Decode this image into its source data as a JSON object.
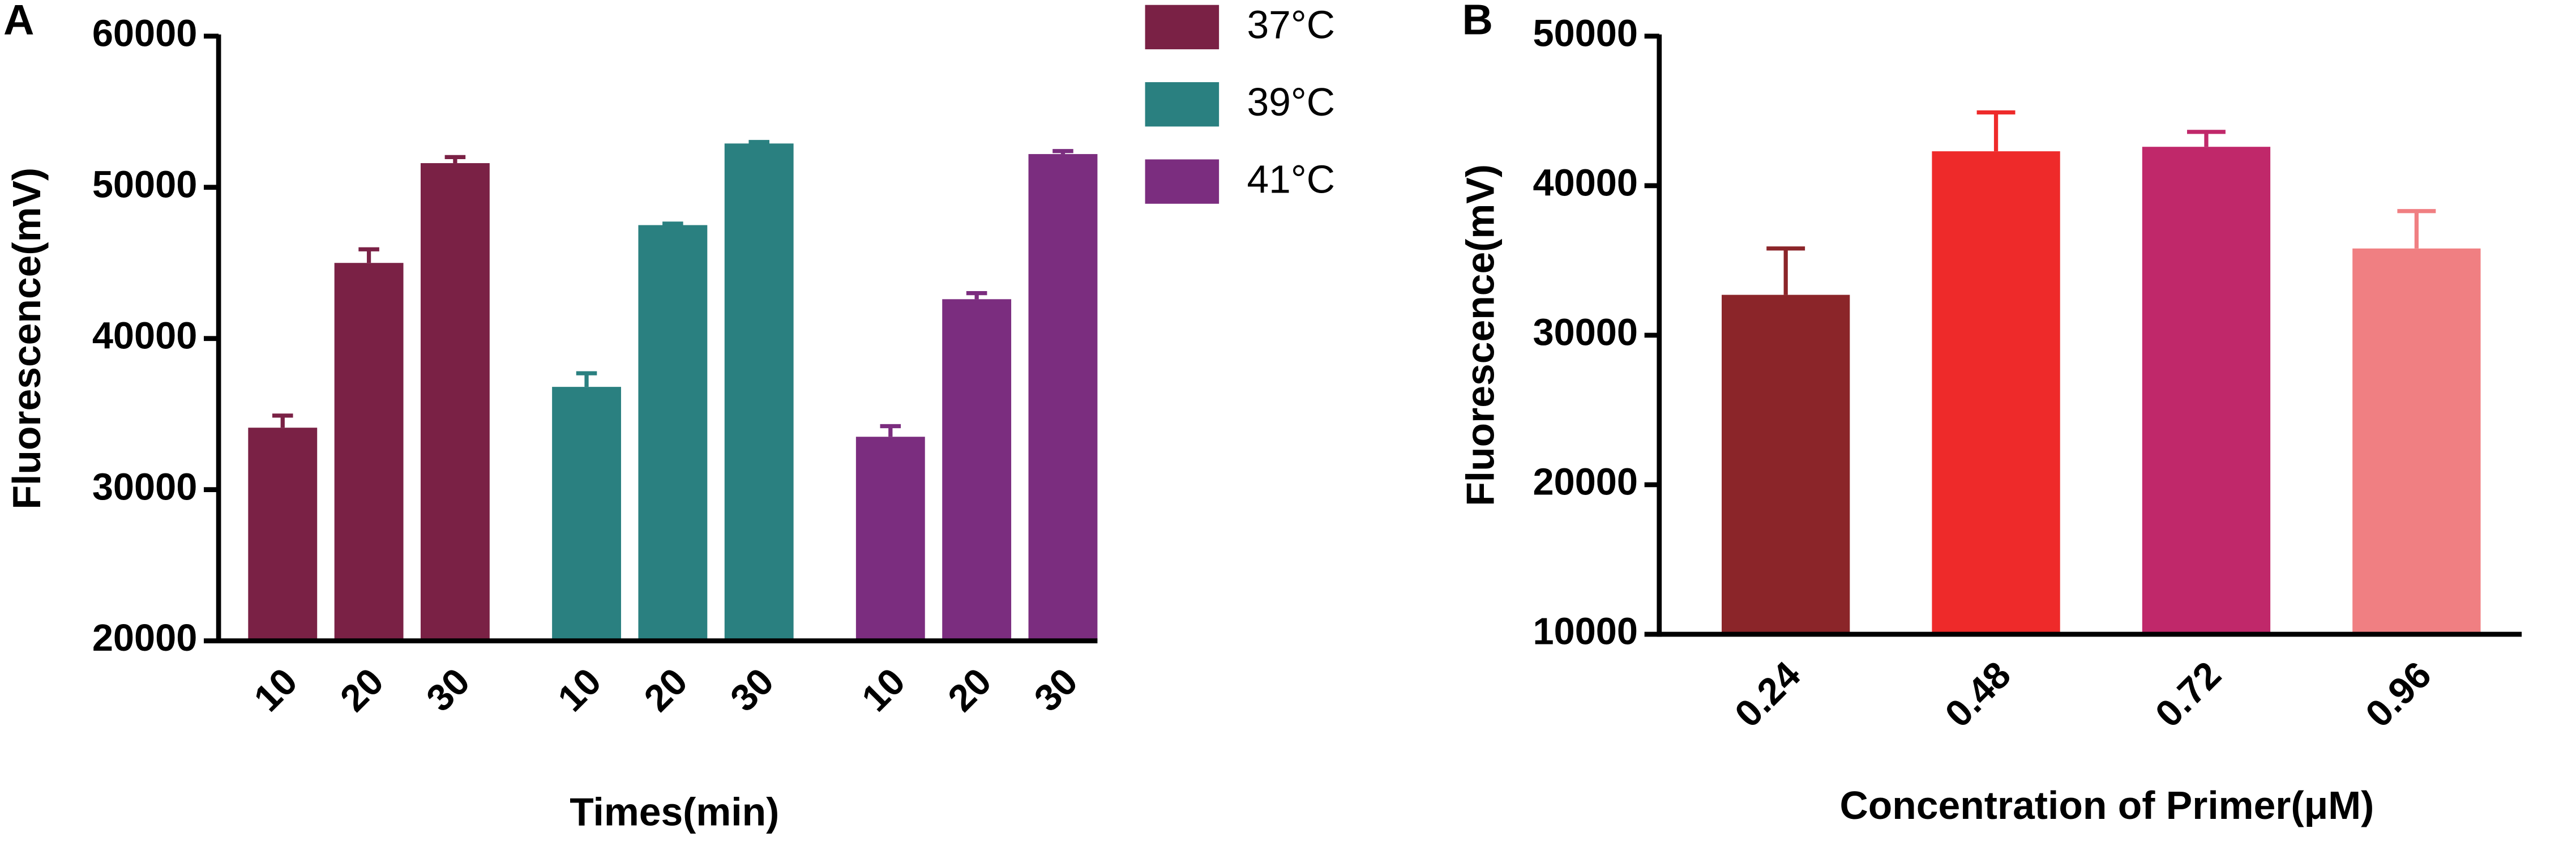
{
  "chart_data": [
    {
      "type": "bar",
      "panel_label": "A",
      "x_label": "Times(min)",
      "y_label": "Fluorescence(mV)",
      "categories": [
        "10",
        "20",
        "30"
      ],
      "series": [
        {
          "name": "37°C",
          "color": "#7a2145",
          "values": [
            34100,
            45000,
            51600
          ],
          "errors": [
            800,
            900,
            400
          ]
        },
        {
          "name": "39°C",
          "color": "#2a8080",
          "values": [
            36800,
            47500,
            52900
          ],
          "errors": [
            900,
            100,
            100
          ]
        },
        {
          "name": "41°C",
          "color": "#7b2d7f",
          "values": [
            33500,
            42600,
            52200
          ],
          "errors": [
            700,
            400,
            200
          ]
        }
      ],
      "ylim": [
        20000,
        60000
      ],
      "yticks": [
        20000,
        30000,
        40000,
        50000,
        60000
      ],
      "legend": "right"
    },
    {
      "type": "bar",
      "panel_label": "B",
      "x_label": "Concentration of Primer(μM)",
      "y_label": "Fluorescence(mV)",
      "categories": [
        "0.24",
        "0.48",
        "0.72",
        "0.96"
      ],
      "values": [
        32700,
        42300,
        42600,
        35800
      ],
      "errors": [
        3100,
        2600,
        1000,
        2500
      ],
      "colors": [
        "#8b2529",
        "#ee2a2a",
        "#c0286a",
        "#f07f82"
      ],
      "ylim": [
        10000,
        50000
      ],
      "yticks": [
        10000,
        20000,
        30000,
        40000,
        50000
      ]
    }
  ]
}
